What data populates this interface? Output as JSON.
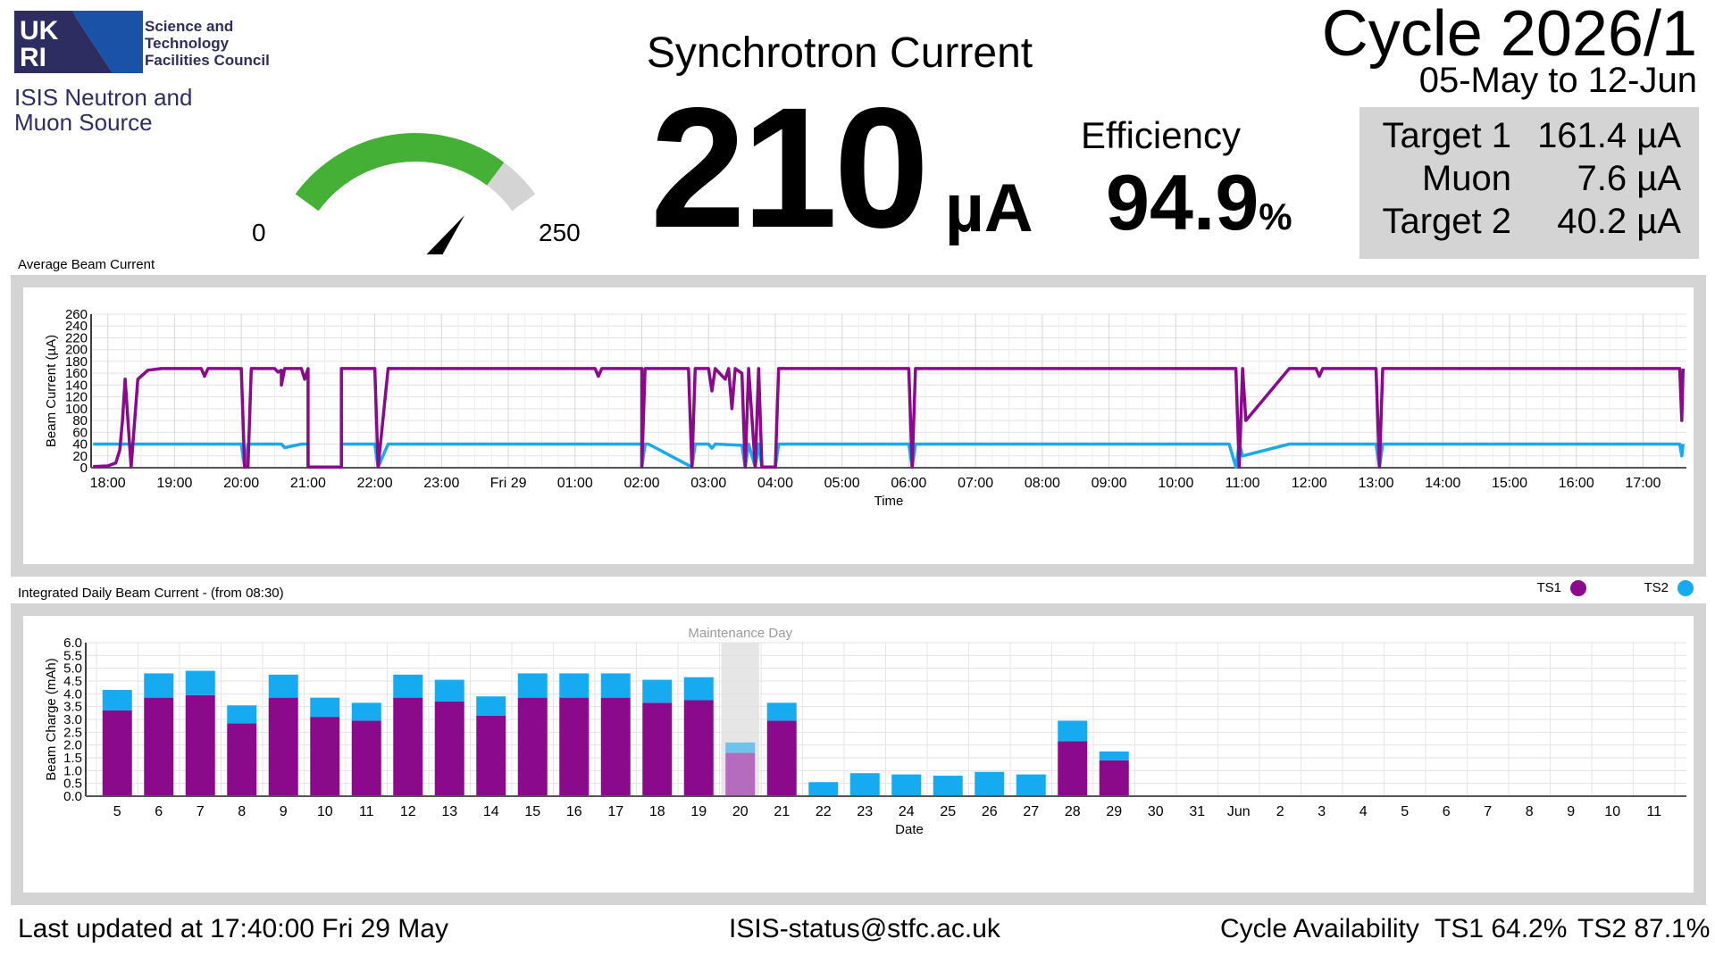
{
  "header": {
    "logo_mark": "UKRI",
    "logo_lines": [
      "Science and",
      "Technology",
      "Facilities Council"
    ],
    "org_lines": [
      "ISIS Neutron and",
      "Muon Source"
    ]
  },
  "gauge": {
    "min_label": "0",
    "max_label": "250",
    "value": 210,
    "max": 250,
    "colors": {
      "fill": "#44b035",
      "track": "#d4d4d4",
      "needle": "#000000"
    }
  },
  "synchrotron": {
    "title": "Synchrotron Current",
    "value": "210",
    "unit": "µA"
  },
  "efficiency": {
    "title": "Efficiency",
    "value": "94.9",
    "unit": "%"
  },
  "cycle": {
    "title": "Cycle 2026/1",
    "range": "05-May to 12-Jun"
  },
  "targets": [
    {
      "name": "Target 1",
      "value": "161.4 µA"
    },
    {
      "name": "Muon",
      "value": "7.6 µA"
    },
    {
      "name": "Target 2",
      "value": "40.2 µA"
    }
  ],
  "colors": {
    "ts1": "#8b0a8c",
    "ts2": "#16aaf0",
    "ts1_muted": "#b56cbf",
    "ts2_muted": "#6ec3ec",
    "panel_border": "#d4d4d4"
  },
  "legend": [
    {
      "name": "TS1",
      "color": "#8b0a8c"
    },
    {
      "name": "TS2",
      "color": "#16aaf0"
    }
  ],
  "avg_panel": {
    "title": "Average Beam Current"
  },
  "daily_panel": {
    "title": "Integrated Daily Beam Current - (from 08:30)"
  },
  "chart_data": [
    {
      "type": "line",
      "title": "Average Beam Current",
      "xlabel": "Time",
      "ylabel": "Beam Current (µA)",
      "ylim": [
        0,
        260
      ],
      "yticks": [
        "0",
        "20",
        "40",
        "60",
        "80",
        "100",
        "120",
        "140",
        "160",
        "180",
        "200",
        "220",
        "240",
        "260"
      ],
      "xlim": [
        17.75,
        41.65
      ],
      "xticks": [
        {
          "t": 18,
          "label": "18:00"
        },
        {
          "t": 19,
          "label": "19:00"
        },
        {
          "t": 20,
          "label": "20:00"
        },
        {
          "t": 21,
          "label": "21:00"
        },
        {
          "t": 22,
          "label": "22:00"
        },
        {
          "t": 23,
          "label": "23:00"
        },
        {
          "t": 24,
          "label": "Fri 29"
        },
        {
          "t": 25,
          "label": "01:00"
        },
        {
          "t": 26,
          "label": "02:00"
        },
        {
          "t": 27,
          "label": "03:00"
        },
        {
          "t": 28,
          "label": "04:00"
        },
        {
          "t": 29,
          "label": "05:00"
        },
        {
          "t": 30,
          "label": "06:00"
        },
        {
          "t": 31,
          "label": "07:00"
        },
        {
          "t": 32,
          "label": "08:00"
        },
        {
          "t": 33,
          "label": "09:00"
        },
        {
          "t": 34,
          "label": "10:00"
        },
        {
          "t": 35,
          "label": "11:00"
        },
        {
          "t": 36,
          "label": "12:00"
        },
        {
          "t": 37,
          "label": "13:00"
        },
        {
          "t": 38,
          "label": "14:00"
        },
        {
          "t": 39,
          "label": "15:00"
        },
        {
          "t": 40,
          "label": "16:00"
        },
        {
          "t": 41,
          "label": "17:00"
        }
      ],
      "grid": true,
      "series": [
        {
          "name": "TS1",
          "color": "#8b0a8c",
          "x": [
            17.78,
            18.0,
            18.12,
            18.18,
            18.22,
            18.26,
            18.35,
            18.45,
            18.6,
            18.8,
            19.0,
            19.4,
            19.45,
            19.5,
            20.0,
            20.05,
            20.1,
            20.15,
            20.5,
            20.55,
            20.6,
            20.6,
            20.65,
            20.9,
            20.95,
            21.0,
            21.0,
            21.5,
            21.5,
            21.55,
            22.0,
            22.05,
            22.2,
            22.7,
            23.0,
            23.5,
            24.0,
            25.0,
            25.3,
            25.35,
            25.4,
            26.0,
            26.0,
            26.05,
            26.1,
            26.6,
            26.7,
            26.75,
            26.8,
            27.0,
            27.05,
            27.1,
            27.25,
            27.3,
            27.35,
            27.4,
            27.5,
            27.55,
            27.6,
            27.7,
            27.75,
            27.8,
            27.9,
            28.0,
            28.05,
            28.15,
            29.0,
            30.0,
            30.05,
            30.1,
            30.15,
            30.25,
            30.8,
            31.0,
            31.5,
            32.0,
            34.0,
            34.8,
            34.9,
            34.95,
            35.0,
            35.05,
            35.7,
            36.0,
            36.1,
            36.15,
            36.2,
            37.0,
            37.05,
            37.1,
            37.15,
            37.2,
            38.0,
            39.0,
            40.0,
            41.0,
            41.55,
            41.58,
            41.6
          ],
          "y": [
            2,
            3,
            8,
            30,
            80,
            150,
            1,
            150,
            165,
            168,
            168,
            168,
            155,
            168,
            168,
            1,
            1,
            168,
            168,
            162,
            165,
            140,
            168,
            168,
            150,
            168,
            1,
            1,
            168,
            168,
            168,
            1,
            168,
            168,
            168,
            168,
            168,
            168,
            168,
            155,
            168,
            168,
            1,
            168,
            168,
            168,
            168,
            1,
            168,
            168,
            130,
            168,
            150,
            168,
            100,
            168,
            160,
            1,
            168,
            1,
            168,
            1,
            1,
            1,
            168,
            168,
            168,
            168,
            1,
            168,
            168,
            168,
            168,
            168,
            168,
            168,
            168,
            168,
            168,
            1,
            168,
            80,
            168,
            168,
            168,
            155,
            168,
            168,
            1,
            168,
            168,
            168,
            168,
            168,
            168,
            168,
            168,
            80,
            168
          ]
        },
        {
          "name": "TS2",
          "color": "#16aaf0",
          "x": [
            17.78,
            18.12,
            18.18,
            18.22,
            18.26,
            20.0,
            20.05,
            20.1,
            20.15,
            20.6,
            20.65,
            20.9,
            20.95,
            21.0,
            21.0,
            21.5,
            21.5,
            21.55,
            22.0,
            22.05,
            22.2,
            26.0,
            26.0,
            26.05,
            26.1,
            26.75,
            26.8,
            27.0,
            27.05,
            27.1,
            27.5,
            27.55,
            27.6,
            27.7,
            27.75,
            27.8,
            27.9,
            28.0,
            28.05,
            28.15,
            30.0,
            30.05,
            30.1,
            30.15,
            34.8,
            34.9,
            34.95,
            35.0,
            35.7,
            36.0,
            37.0,
            37.05,
            37.1,
            37.15,
            41.0,
            41.55,
            41.58,
            41.6
          ],
          "y": [
            40,
            40,
            40,
            40,
            40,
            40,
            1,
            40,
            40,
            40,
            34,
            40,
            40,
            40,
            1,
            1,
            40,
            40,
            40,
            1,
            40,
            40,
            1,
            40,
            40,
            1,
            40,
            40,
            33,
            40,
            38,
            1,
            40,
            1,
            40,
            1,
            1,
            1,
            40,
            40,
            40,
            1,
            40,
            40,
            40,
            1,
            40,
            20,
            40,
            40,
            40,
            1,
            40,
            40,
            40,
            40,
            20,
            40
          ]
        }
      ]
    },
    {
      "type": "bar",
      "stacked": true,
      "title": "Integrated Daily Beam Current - (from 08:30)",
      "xlabel": "Date",
      "ylabel": "Beam Charge (mAh)",
      "ylim": [
        0,
        6.0
      ],
      "yticks": [
        "0.0",
        "0.5",
        "1.0",
        "1.5",
        "2.0",
        "2.5",
        "3.0",
        "3.5",
        "4.0",
        "4.5",
        "5.0",
        "5.5",
        "6.0"
      ],
      "categories": [
        "5",
        "6",
        "7",
        "8",
        "9",
        "10",
        "11",
        "12",
        "13",
        "14",
        "15",
        "16",
        "17",
        "18",
        "19",
        "20",
        "21",
        "22",
        "23",
        "24",
        "25",
        "26",
        "27",
        "28",
        "29",
        "30",
        "31",
        "Jun",
        "2",
        "3",
        "4",
        "5",
        "6",
        "7",
        "8",
        "9",
        "10",
        "11"
      ],
      "highlight": {
        "category": "20",
        "label": "Maintenance Day"
      },
      "legend": "top-right",
      "grid": true,
      "series": [
        {
          "name": "TS1",
          "color": "#8b0a8c",
          "values": [
            3.35,
            3.85,
            3.95,
            2.85,
            3.85,
            3.1,
            2.95,
            3.85,
            3.7,
            3.15,
            3.85,
            3.85,
            3.85,
            3.65,
            3.75,
            1.7,
            2.95,
            0,
            0,
            0,
            0,
            0,
            0,
            2.15,
            1.4,
            0,
            0,
            0,
            0,
            0,
            0,
            0,
            0,
            0,
            0,
            0,
            0,
            0
          ]
        },
        {
          "name": "TS2",
          "color": "#16aaf0",
          "values": [
            0.8,
            0.95,
            0.95,
            0.7,
            0.9,
            0.75,
            0.7,
            0.9,
            0.85,
            0.75,
            0.95,
            0.95,
            0.95,
            0.9,
            0.9,
            0.4,
            0.7,
            0.55,
            0.9,
            0.85,
            0.8,
            0.95,
            0.85,
            0.8,
            0.35,
            0,
            0,
            0,
            0,
            0,
            0,
            0,
            0,
            0,
            0,
            0,
            0,
            0
          ]
        }
      ]
    }
  ],
  "footer": {
    "updated": "Last updated at 17:40:00 Fri 29 May",
    "email": "ISIS-status@stfc.ac.uk",
    "availability_label": "Cycle Availability",
    "ts1_availability": "TS1 64.2%",
    "ts2_availability": "TS2 87.1%"
  }
}
